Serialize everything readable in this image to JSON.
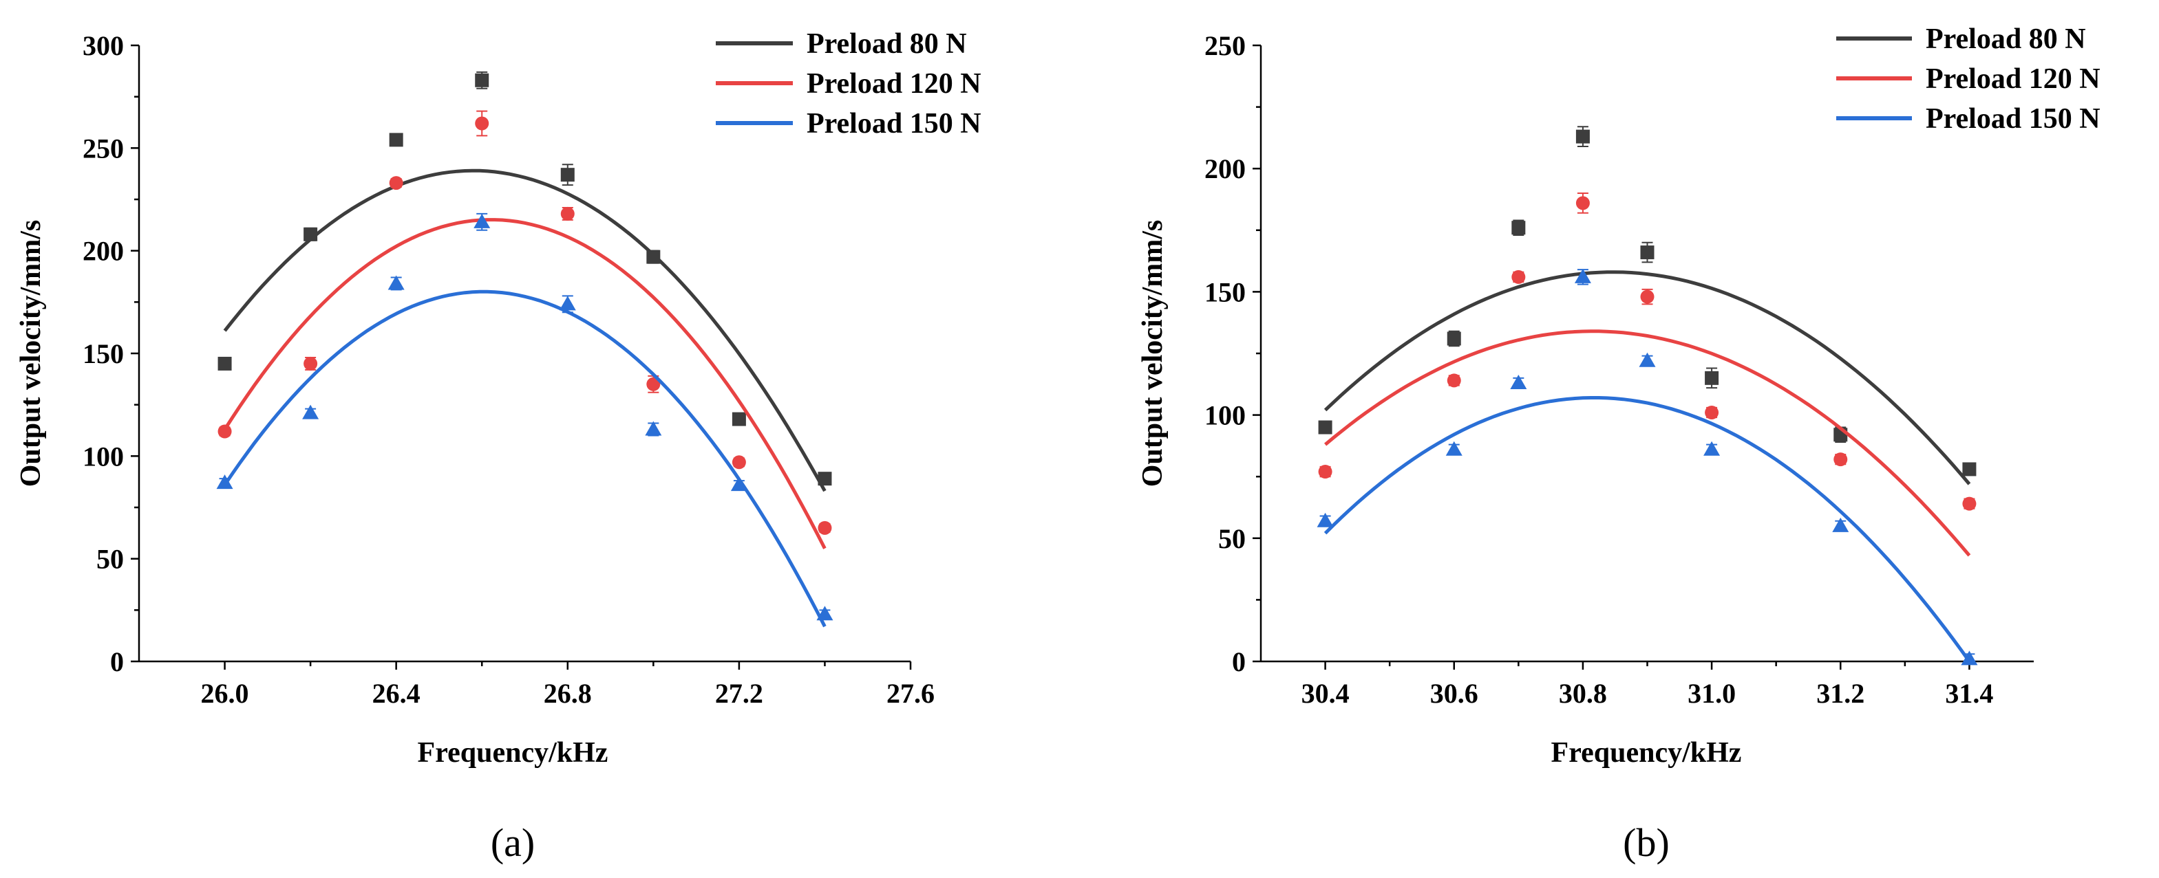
{
  "chart_data": [
    {
      "type": "scatter",
      "panel_label": "(a)",
      "xlabel": "Frequency/kHz",
      "ylabel": "Output velocity/mm/s",
      "xlim": [
        25.8,
        27.6
      ],
      "ylim": [
        0,
        300
      ],
      "xticks": [
        26.0,
        26.4,
        26.8,
        27.2,
        27.6
      ],
      "xtick_labels": [
        "26.0",
        "26.4",
        "26.8",
        "27.2",
        "27.6"
      ],
      "yticks": [
        0,
        50,
        100,
        150,
        200,
        250,
        300
      ],
      "ytick_labels": [
        "0",
        "50",
        "100",
        "150",
        "200",
        "250",
        "300"
      ],
      "legend_position": "top-right",
      "fit": "quadratic curve per series",
      "grid": false,
      "series": [
        {
          "name": "Preload 80 N",
          "color": "#3d3d3d",
          "marker": "square",
          "x": [
            26.0,
            26.2,
            26.4,
            26.6,
            26.8,
            27.0,
            27.2,
            27.4
          ],
          "y": [
            145,
            208,
            254,
            283,
            237,
            197,
            118,
            89
          ],
          "err": [
            2,
            3,
            2,
            4,
            5,
            3,
            2,
            2
          ],
          "fit_x": [
            26.0,
            26.58,
            27.4
          ],
          "fit_y": [
            161,
            239,
            83
          ]
        },
        {
          "name": "Preload 120 N",
          "color": "#e84343",
          "marker": "circle",
          "x": [
            26.0,
            26.2,
            26.4,
            26.6,
            26.8,
            27.0,
            27.2,
            27.4
          ],
          "y": [
            112,
            145,
            233,
            262,
            218,
            135,
            97,
            65
          ],
          "err": [
            2,
            3,
            2,
            6,
            3,
            4,
            2,
            2
          ],
          "fit_x": [
            26.0,
            26.6,
            27.4
          ],
          "fit_y": [
            113,
            215,
            55
          ]
        },
        {
          "name": "Preload 150 N",
          "color": "#2a6fd6",
          "marker": "triangle",
          "x": [
            26.0,
            26.2,
            26.4,
            26.6,
            26.8,
            27.0,
            27.2,
            27.4
          ],
          "y": [
            87,
            121,
            184,
            214,
            174,
            113,
            86,
            23
          ],
          "err": [
            2,
            2,
            3,
            4,
            4,
            3,
            2,
            2
          ],
          "fit_x": [
            26.0,
            26.62,
            27.4
          ],
          "fit_y": [
            86,
            180,
            17
          ]
        }
      ]
    },
    {
      "type": "scatter",
      "panel_label": "(b)",
      "xlabel": "Frequency/kHz",
      "ylabel": "Output velocity/mm/s",
      "xlim": [
        30.3,
        31.5
      ],
      "ylim": [
        0,
        250
      ],
      "xticks": [
        30.4,
        30.6,
        30.8,
        31.0,
        31.2,
        31.4
      ],
      "xtick_labels": [
        "30.4",
        "30.6",
        "30.8",
        "31.0",
        "31.2",
        "31.4"
      ],
      "yticks": [
        0,
        50,
        100,
        150,
        200,
        250
      ],
      "ytick_labels": [
        "0",
        "50",
        "100",
        "150",
        "200",
        "250"
      ],
      "legend_position": "top-right",
      "fit": "quadratic curve per series",
      "grid": false,
      "series": [
        {
          "name": "Preload 80 N",
          "color": "#3d3d3d",
          "marker": "square",
          "x": [
            30.4,
            30.6,
            30.7,
            30.8,
            30.9,
            31.0,
            31.2,
            31.4
          ],
          "y": [
            95,
            131,
            176,
            213,
            166,
            115,
            92,
            78
          ],
          "err": [
            2,
            3,
            3,
            4,
            4,
            4,
            3,
            2
          ],
          "fit_x": [
            30.4,
            30.84,
            31.4
          ],
          "fit_y": [
            102,
            158,
            72
          ]
        },
        {
          "name": "Preload 120 N",
          "color": "#e84343",
          "marker": "circle",
          "x": [
            30.4,
            30.6,
            30.7,
            30.8,
            30.9,
            31.0,
            31.2,
            31.4
          ],
          "y": [
            77,
            114,
            156,
            186,
            148,
            101,
            82,
            64
          ],
          "err": [
            2,
            2,
            2,
            4,
            3,
            2,
            2,
            2
          ],
          "fit_x": [
            30.4,
            30.82,
            31.4
          ],
          "fit_y": [
            88,
            134,
            43
          ]
        },
        {
          "name": "Preload 150 N",
          "color": "#2a6fd6",
          "marker": "triangle",
          "x": [
            30.4,
            30.6,
            30.7,
            30.8,
            30.9,
            31.0,
            31.2,
            31.4
          ],
          "y": [
            57,
            86,
            113,
            156,
            122,
            86,
            55,
            1
          ],
          "err": [
            2,
            2,
            2,
            3,
            2,
            2,
            2,
            2
          ],
          "fit_x": [
            30.4,
            30.81,
            31.4
          ],
          "fit_y": [
            52,
            107,
            0
          ]
        }
      ]
    }
  ]
}
